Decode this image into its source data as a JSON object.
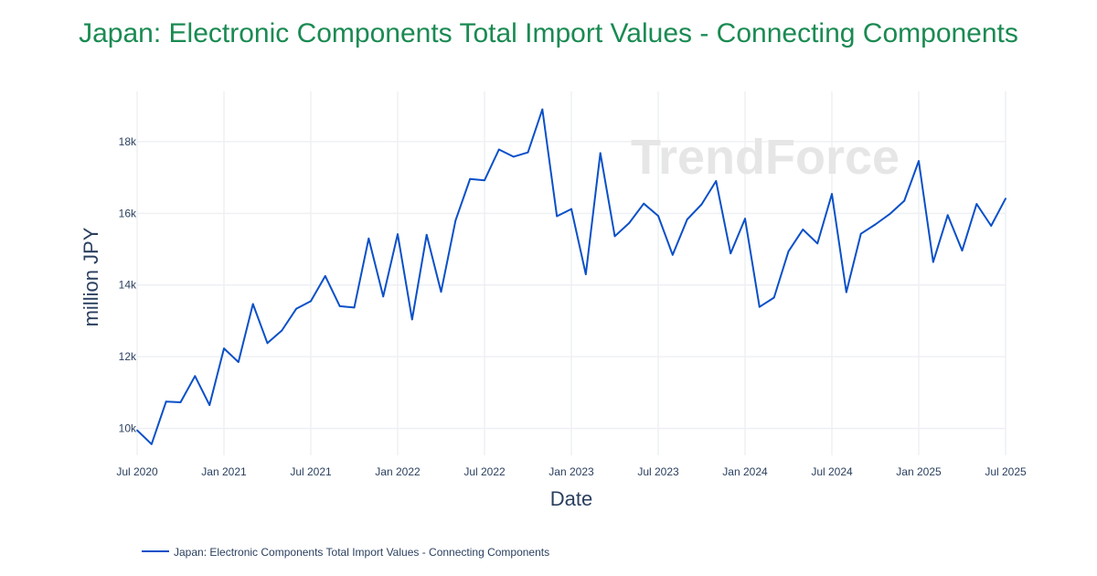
{
  "watermark": "TrendForce",
  "chart_data": {
    "type": "line",
    "title": "Japan: Electronic Components Total Import Values - Connecting Components",
    "xlabel": "Date",
    "ylabel": "million JPY",
    "x_ticks": [
      "Jul 2020",
      "Jan 2021",
      "Jul 2021",
      "Jan 2022",
      "Jul 2022",
      "Jan 2023",
      "Jul 2023",
      "Jan 2024",
      "Jul 2024",
      "Jan 2025",
      "Jul 2025"
    ],
    "y_ticks": [
      "10k",
      "12k",
      "14k",
      "16k",
      "18k"
    ],
    "ylim": [
      9250,
      19400
    ],
    "x_start": "2020-07",
    "x_end": "2025-07",
    "grid": true,
    "legend_position": "bottom-left",
    "colors": {
      "line": "#0a50c8",
      "title": "#1a8a52",
      "grid": "#eef0f4",
      "text": "#2a3f5f"
    },
    "series": [
      {
        "name": "Japan: Electronic Components Total Import Values - Connecting Components",
        "x": [
          "2020-07",
          "2020-08",
          "2020-09",
          "2020-10",
          "2020-11",
          "2020-12",
          "2021-01",
          "2021-02",
          "2021-03",
          "2021-04",
          "2021-05",
          "2021-06",
          "2021-07",
          "2021-08",
          "2021-09",
          "2021-10",
          "2021-11",
          "2021-12",
          "2022-01",
          "2022-02",
          "2022-03",
          "2022-04",
          "2022-05",
          "2022-06",
          "2022-07",
          "2022-08",
          "2022-09",
          "2022-10",
          "2022-11",
          "2022-12",
          "2023-01",
          "2023-02",
          "2023-03",
          "2023-04",
          "2023-05",
          "2023-06",
          "2023-07",
          "2023-08",
          "2023-09",
          "2023-10",
          "2023-11",
          "2023-12",
          "2024-01",
          "2024-02",
          "2024-03",
          "2024-04",
          "2024-05",
          "2024-06",
          "2024-07",
          "2024-08",
          "2024-09",
          "2024-10",
          "2024-11",
          "2024-12",
          "2025-01",
          "2025-02",
          "2025-03",
          "2025-04",
          "2025-05",
          "2025-06",
          "2025-07"
        ],
        "values": [
          9950,
          9560,
          10750,
          10730,
          11460,
          10650,
          12230,
          11850,
          13470,
          12380,
          12730,
          13340,
          13550,
          14250,
          13410,
          13370,
          15300,
          13680,
          15420,
          13040,
          15400,
          13810,
          15800,
          16960,
          16920,
          17780,
          17580,
          17700,
          18900,
          15920,
          16120,
          14300,
          17680,
          15360,
          15730,
          16270,
          15930,
          14840,
          15830,
          16250,
          16900,
          14880,
          15850,
          13390,
          13650,
          14940,
          15550,
          15160,
          16540,
          13800,
          15430,
          15690,
          15980,
          16350,
          17460,
          14640,
          15950,
          14960,
          16260,
          15650,
          16410
        ]
      }
    ]
  }
}
